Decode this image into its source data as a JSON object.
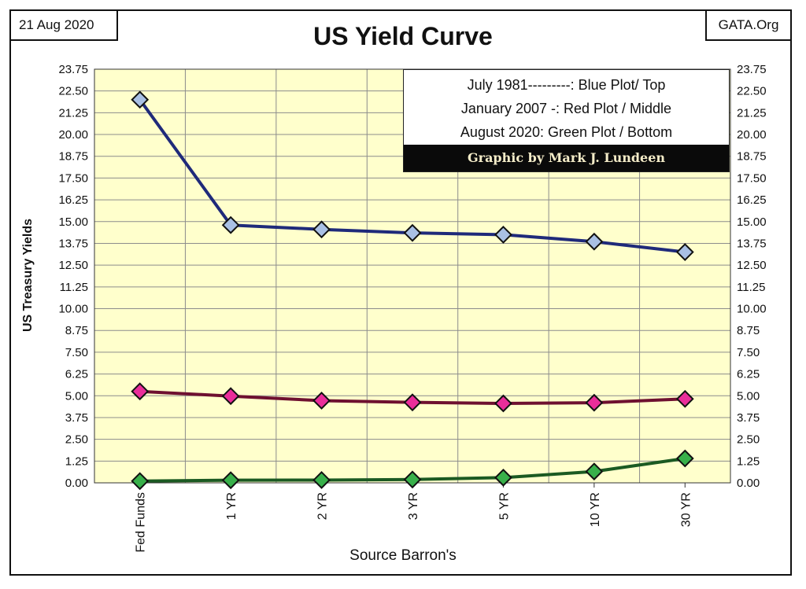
{
  "header": {
    "date": "21 Aug 2020",
    "source": "GATA.Org"
  },
  "legend": {
    "lines": [
      "July 1981---------: Blue Plot/ Top",
      "January 2007 -: Red Plot / Middle",
      "August 2020: Green Plot / Bottom"
    ],
    "credit": "Graphic by Mark J. Lundeen"
  },
  "colors": {
    "plot_background": "#ffffcc",
    "grid": "#8c8c8c",
    "blue_line": "#1f2a7a",
    "blue_marker": "#a9c0e4",
    "red_line": "#6e1030",
    "red_marker": "#ea2d9a",
    "green_line": "#1b5a22",
    "green_marker": "#38b04a"
  },
  "chart_data": {
    "type": "line",
    "title": "US Yield Curve",
    "xlabel": "Source Barron's",
    "ylabel": "US Treasury Yields",
    "categories": [
      "Fed Funds",
      "1 YR",
      "2 YR",
      "3 YR",
      "5 YR",
      "10 YR",
      "30 YR"
    ],
    "ylim": [
      0,
      23.75
    ],
    "y_ticks": [
      "0.00",
      "1.25",
      "2.50",
      "3.75",
      "5.00",
      "6.25",
      "7.50",
      "8.75",
      "10.00",
      "11.25",
      "12.50",
      "13.75",
      "15.00",
      "16.25",
      "17.50",
      "18.75",
      "20.00",
      "21.25",
      "22.50",
      "23.75"
    ],
    "y_axis_both_sides": true,
    "grid": true,
    "legend_position": "top-right",
    "series": [
      {
        "values": [
          22.0,
          14.8,
          14.55,
          14.35,
          14.25,
          13.85,
          13.25
        ],
        "line_color": "#1f2a7a",
        "marker_color": "#a9c0e4"
      },
      {
        "values": [
          5.25,
          4.98,
          4.72,
          4.62,
          4.56,
          4.6,
          4.82
        ],
        "line_color": "#6e1030",
        "marker_color": "#ea2d9a"
      },
      {
        "values": [
          0.1,
          0.15,
          0.16,
          0.19,
          0.3,
          0.65,
          1.4
        ],
        "line_color": "#1b5a22",
        "marker_color": "#38b04a"
      }
    ]
  }
}
